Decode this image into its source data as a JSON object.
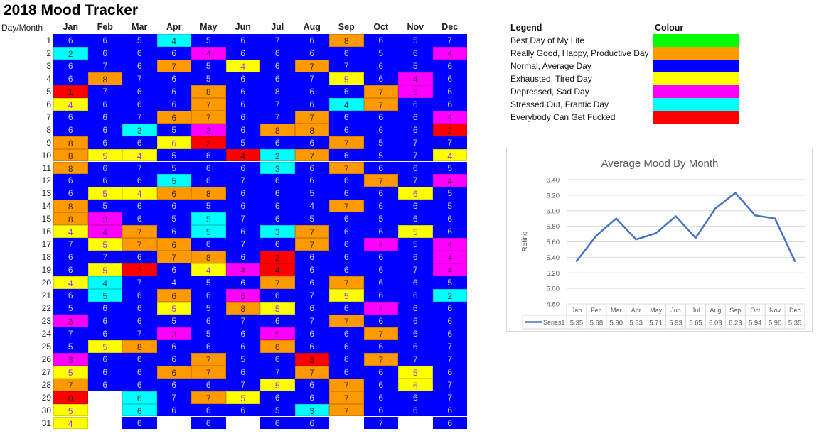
{
  "title": "2018 Mood Tracker",
  "grid": {
    "corner_label": "Day/Month",
    "months": [
      "Jan",
      "Feb",
      "Mar",
      "Apr",
      "May",
      "Jun",
      "Jul",
      "Aug",
      "Sep",
      "Oct",
      "Nov",
      "Dec"
    ],
    "days": [
      [
        "6B",
        "6B",
        "5B",
        "4C",
        "5B",
        "6B",
        "7B",
        "6B",
        "8O",
        "6B",
        "5B",
        "7B"
      ],
      [
        "2C",
        "6B",
        "6B",
        "6B",
        "4M",
        "6B",
        "6B",
        "6B",
        "6B",
        "5B",
        "6B",
        "4M"
      ],
      [
        "6B",
        "7B",
        "6B",
        "7O",
        "5B",
        "4Y",
        "6B",
        "7O",
        "7B",
        "6B",
        "5B",
        "6B"
      ],
      [
        "6B",
        "8O",
        "7B",
        "6B",
        "5B",
        "6B",
        "6B",
        "7B",
        "5Y",
        "6B",
        "4M",
        "6B"
      ],
      [
        "1R",
        "7B",
        "6B",
        "6B",
        "8O",
        "6B",
        "8B",
        "6B",
        "6B",
        "7O",
        "5M",
        "6B"
      ],
      [
        "4Y",
        "6B",
        "6B",
        "6B",
        "7O",
        "6B",
        "7B",
        "6B",
        "4C",
        "7O",
        "6B",
        "6B"
      ],
      [
        "6B",
        "6B",
        "7B",
        "6O",
        "7O",
        "6B",
        "7B",
        "7O",
        "6B",
        "6B",
        "6B",
        "4M"
      ],
      [
        "6B",
        "6B",
        "3C",
        "5B",
        "3M",
        "6B",
        "8O",
        "8O",
        "6B",
        "6B",
        "6B",
        "2R"
      ],
      [
        "8O",
        "6B",
        "6B",
        "6Y",
        "2R",
        "5B",
        "6B",
        "6B",
        "7O",
        "5B",
        "7B",
        "7B"
      ],
      [
        "8O",
        "5Y",
        "4Y",
        "5B",
        "6B",
        "4R",
        "2C",
        "7O",
        "6B",
        "5B",
        "7B",
        "4Y"
      ],
      [
        "8O",
        "6B",
        "7B",
        "5B",
        "6B",
        "6B",
        "3C",
        "6B",
        "7O",
        "6B",
        "6B",
        "5B"
      ],
      [
        "6B",
        "6B",
        "6B",
        "5C",
        "6B",
        "7B",
        "6B",
        "6B",
        "6B",
        "7O",
        "7B",
        "4M"
      ],
      [
        "6B",
        "5Y",
        "4Y",
        "6O",
        "8O",
        "6B",
        "6B",
        "5B",
        "6B",
        "6B",
        "6Y",
        "5B"
      ],
      [
        "8O",
        "5B",
        "6B",
        "6B",
        "5B",
        "6B",
        "6B",
        "4B",
        "7O",
        "6B",
        "6B",
        "5B"
      ],
      [
        "8O",
        "3M",
        "6B",
        "5B",
        "5C",
        "7B",
        "6B",
        "5B",
        "6B",
        "5B",
        "6B",
        "6B"
      ],
      [
        "4Y",
        "4M",
        "7O",
        "6B",
        "5C",
        "6B",
        "3C",
        "7O",
        "6B",
        "6B",
        "5Y",
        "6B"
      ],
      [
        "7B",
        "5Y",
        "7O",
        "6O",
        "6B",
        "7B",
        "6B",
        "7O",
        "6B",
        "4M",
        "5B",
        "4M"
      ],
      [
        "6B",
        "7B",
        "6B",
        "7O",
        "8O",
        "6B",
        "2R",
        "6B",
        "6B",
        "6B",
        "6B",
        "4M"
      ],
      [
        "6B",
        "5Y",
        "2R",
        "6B",
        "4Y",
        "4M",
        "4R",
        "6B",
        "6B",
        "6B",
        "7B",
        "4M"
      ],
      [
        "4Y",
        "4C",
        "7B",
        "4B",
        "5B",
        "6B",
        "7O",
        "6B",
        "7O",
        "6B",
        "6B",
        "5B"
      ],
      [
        "6B",
        "5C",
        "6B",
        "6O",
        "6B",
        "6M",
        "6B",
        "7B",
        "5Y",
        "6B",
        "6B",
        "2C"
      ],
      [
        "5B",
        "6B",
        "6B",
        "5Y",
        "5B",
        "8O",
        "5Y",
        "6B",
        "6B",
        "4M",
        "6B",
        "6B"
      ],
      [
        "3M",
        "6B",
        "6B",
        "5B",
        "6B",
        "7B",
        "6B",
        "7B",
        "7O",
        "6B",
        "6B",
        "6B"
      ],
      [
        "7B",
        "6B",
        "7B",
        "3M",
        "5B",
        "6B",
        "5M",
        "6B",
        "6B",
        "7O",
        "6B",
        "6B"
      ],
      [
        "5B",
        "5Y",
        "8O",
        "6B",
        "6B",
        "6B",
        "6O",
        "6B",
        "6B",
        "6B",
        "6B",
        "7B"
      ],
      [
        "3M",
        "6B",
        "6B",
        "6B",
        "7O",
        "5B",
        "6B",
        "3R",
        "6B",
        "7O",
        "7B",
        "7B"
      ],
      [
        "5Y",
        "6B",
        "6B",
        "6O",
        "7O",
        "6B",
        "7B",
        "7O",
        "6B",
        "6B",
        "5Y",
        "6B"
      ],
      [
        "7O",
        "6B",
        "6B",
        "6B",
        "6B",
        "7B",
        "5Y",
        "6B",
        "7O",
        "6B",
        "6Y",
        "7B"
      ],
      [
        "0R",
        null,
        "6C",
        "7B",
        "7O",
        "5Y",
        "6B",
        "6B",
        "7O",
        "6B",
        "6B",
        "7B"
      ],
      [
        "5Y",
        null,
        "6C",
        "6B",
        "6B",
        "6B",
        "5B",
        "3C",
        "7O",
        "6B",
        "6B",
        "6B"
      ],
      [
        "4Y",
        null,
        "6B",
        null,
        "6B",
        null,
        "6B",
        "6B",
        null,
        "7B",
        null,
        "6B"
      ]
    ]
  },
  "legend": {
    "header": "Legend",
    "colour_header": "Colour",
    "items": [
      {
        "key": "G",
        "label": "Best Day of My Life",
        "color": "#00ff00",
        "text_color": "#111111"
      },
      {
        "key": "O",
        "label": "Really Good, Happy, Productive Day",
        "color": "#ff9900",
        "text_color": "#3a2a00"
      },
      {
        "key": "B",
        "label": "Normal, Average Day",
        "color": "#0000ff",
        "text_color": "#c9d2ff"
      },
      {
        "key": "Y",
        "label": "Exhausted, Tired Day",
        "color": "#ffff00",
        "text_color": "#9933ff"
      },
      {
        "key": "M",
        "label": "Depressed, Sad Day",
        "color": "#ff00ff",
        "text_color": "#5a005a"
      },
      {
        "key": "C",
        "label": "Stressed Out, Frantic Day",
        "color": "#00ffff",
        "text_color": "#004040"
      },
      {
        "key": "R",
        "label": "Everybody Can Get Fucked",
        "color": "#ff0000",
        "text_color": "#300000"
      }
    ]
  },
  "chart_data": {
    "type": "line",
    "title": "Average Mood By Month",
    "ylabel": "Rating",
    "xlabel": "",
    "categories": [
      "Jan",
      "Feb",
      "Mar",
      "Apr",
      "May",
      "Jun",
      "Jul",
      "Aug",
      "Sep",
      "Oct",
      "Nov",
      "Dec"
    ],
    "series": [
      {
        "name": "Series1",
        "values": [
          5.35,
          5.68,
          5.9,
          5.63,
          5.71,
          5.93,
          5.65,
          6.03,
          6.23,
          5.94,
          5.9,
          5.35
        ],
        "color": "#4472c4"
      }
    ],
    "ylim": [
      4.8,
      6.4
    ],
    "yticks": [
      "6.40",
      "6.20",
      "6.00",
      "5.80",
      "5.60",
      "5.40",
      "5.20",
      "5.00",
      "4.80"
    ],
    "value_labels": [
      "5.35",
      "5.68",
      "5.90",
      "5.63",
      "5.71",
      "5.93",
      "5.65",
      "6.03",
      "6.23",
      "5.94",
      "5.90",
      "5.35"
    ],
    "grid": true,
    "legend": "data-table-bottom"
  }
}
